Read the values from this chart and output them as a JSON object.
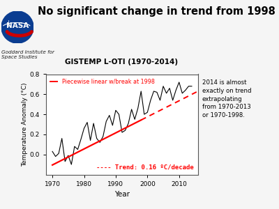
{
  "title": "No significant change in trend from 1998",
  "subtitle": "GISTEMP L-OTI (1970-2014)",
  "xlabel": "Year",
  "ylabel": "Temperature Anomaly (°C)",
  "xlim": [
    1968,
    2016
  ],
  "ylim": [
    -0.2,
    0.8
  ],
  "yticks": [
    0.0,
    0.2,
    0.4,
    0.6,
    0.8
  ],
  "xticks": [
    1970,
    1980,
    1990,
    2000,
    2010
  ],
  "trend_label": "---- Trend: 0.16 ºC/decade",
  "annotation": "2014 is almost\nexactly on trend\nextrapolating\nfrom 1970-2013\nor 1970-1998.",
  "nasa_text": "Goddard Institute for\nSpace Studies",
  "trend_slope": 0.016,
  "trend_intercept_year": 1970,
  "trend_intercept_value": -0.105,
  "years": [
    1970,
    1971,
    1972,
    1973,
    1974,
    1975,
    1976,
    1977,
    1978,
    1979,
    1980,
    1981,
    1982,
    1983,
    1984,
    1985,
    1986,
    1987,
    1988,
    1989,
    1990,
    1991,
    1992,
    1993,
    1994,
    1995,
    1996,
    1997,
    1998,
    1999,
    2000,
    2001,
    2002,
    2003,
    2004,
    2005,
    2006,
    2007,
    2008,
    2009,
    2010,
    2011,
    2012,
    2013,
    2014
  ],
  "anomalies": [
    0.03,
    -0.02,
    0.01,
    0.16,
    -0.07,
    -0.01,
    -0.1,
    0.08,
    0.05,
    0.15,
    0.26,
    0.32,
    0.14,
    0.31,
    0.16,
    0.12,
    0.18,
    0.33,
    0.39,
    0.29,
    0.44,
    0.4,
    0.22,
    0.24,
    0.31,
    0.45,
    0.35,
    0.46,
    0.63,
    0.4,
    0.42,
    0.54,
    0.63,
    0.62,
    0.54,
    0.68,
    0.61,
    0.66,
    0.54,
    0.64,
    0.72,
    0.61,
    0.64,
    0.68,
    0.68
  ],
  "line_color": "#000000",
  "trend_color": "#ff0000",
  "background_color": "#f5f5f5",
  "plot_bg": "#ffffff"
}
